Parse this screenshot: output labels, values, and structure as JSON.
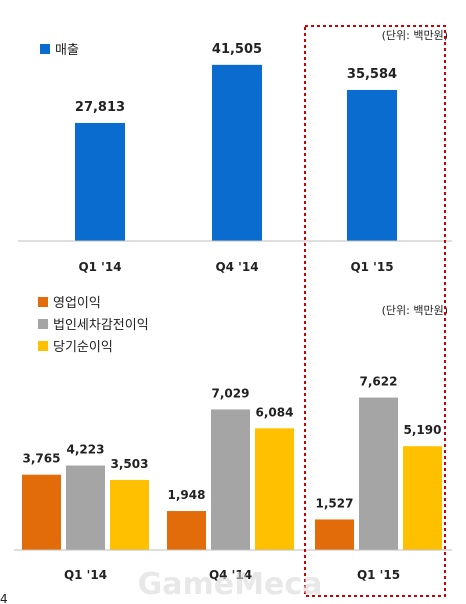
{
  "chart_data": [
    {
      "type": "bar",
      "unit_note": "(단위: 백만원)",
      "categories": [
        "Q1 '14",
        "Q4 '14",
        "Q1 '15"
      ],
      "series": [
        {
          "name": "매출",
          "color": "#0a6ccf",
          "values": [
            27813,
            41505,
            35584
          ]
        }
      ],
      "value_labels": [
        "27,813",
        "41,505",
        "35,584"
      ],
      "legend_position": "top-left",
      "ylim": [
        0,
        45000
      ],
      "grid": false,
      "highlight_category": "Q1 '15"
    },
    {
      "type": "bar",
      "unit_note": "(단위: 백만원)",
      "categories": [
        "Q1 '14",
        "Q4 '14",
        "Q1 '15"
      ],
      "series": [
        {
          "name": "영업이익",
          "color": "#e36c0a",
          "values": [
            3765,
            1948,
            1527
          ],
          "labels": [
            "3,765",
            "1,948",
            "1,527"
          ]
        },
        {
          "name": "법인세차감전이익",
          "color": "#a5a5a5",
          "values": [
            4223,
            7029,
            7622
          ],
          "labels": [
            "4,223",
            "7,029",
            "7,622"
          ]
        },
        {
          "name": "당기순이익",
          "color": "#ffc000",
          "values": [
            3503,
            6084,
            5190
          ],
          "labels": [
            "3,503",
            "6,084",
            "5,190"
          ]
        }
      ],
      "legend_position": "top-left",
      "ylim": [
        0,
        9000
      ],
      "grid": false,
      "highlight_category": "Q1 '15"
    }
  ],
  "highlight_color": "#cc0000",
  "edge_text": "4",
  "watermark": "GameMeca"
}
